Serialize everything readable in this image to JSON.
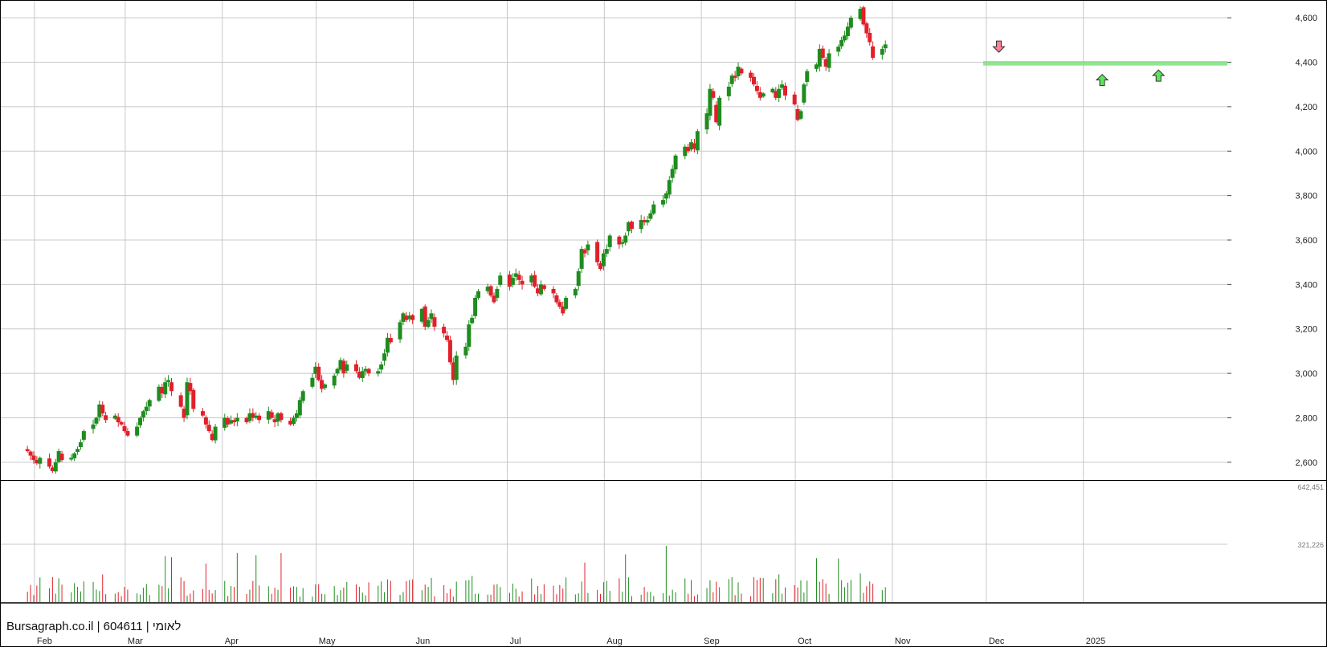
{
  "watermark": {
    "site": "Bursagraph.co.il",
    "separator": " | ",
    "code": "604611",
    "name": "לאומי"
  },
  "colors": {
    "up": "#1e8c1e",
    "down": "#e0202a",
    "grid": "#c8c8c8",
    "support_zone": "#7fe27f",
    "arrow_up_fill": "#5fe35f",
    "arrow_down_fill": "#ff7f9a",
    "frame": "#000000"
  },
  "chart_data": {
    "type": "candlestick",
    "price_ylim": [
      2520,
      4680
    ],
    "price_ticks": [
      2600,
      2800,
      3000,
      3200,
      3400,
      3600,
      3800,
      4000,
      4200,
      4400,
      4600
    ],
    "price_tick_labels": [
      "2,600",
      "2,800",
      "3,000",
      "3,200",
      "3,400",
      "3,600",
      "3,800",
      "4,000",
      "4,200",
      "4,400",
      "4,600"
    ],
    "x_ticks": [
      {
        "label": "Feb",
        "date": "2024-02-01"
      },
      {
        "label": "Mar",
        "date": "2024-03-01"
      },
      {
        "label": "Apr",
        "date": "2024-04-01"
      },
      {
        "label": "May",
        "date": "2024-05-01"
      },
      {
        "label": "Jun",
        "date": "2024-06-01"
      },
      {
        "label": "Jul",
        "date": "2024-07-01"
      },
      {
        "label": "Aug",
        "date": "2024-08-01"
      },
      {
        "label": "Sep",
        "date": "2024-09-01"
      },
      {
        "label": "Oct",
        "date": "2024-10-01"
      },
      {
        "label": "Nov",
        "date": "2024-11-01"
      },
      {
        "label": "Dec",
        "date": "2024-12-01"
      },
      {
        "label": "2025",
        "date": "2025-01-01"
      }
    ],
    "x_range": [
      "2024-01-21",
      "2025-02-16"
    ],
    "closes": [
      2650,
      2630,
      2610,
      2595,
      2620,
      2580,
      2560,
      2600,
      2650,
      2610,
      2620,
      2640,
      2660,
      2690,
      2740,
      2770,
      2800,
      2860,
      2820,
      2790,
      2810,
      2780,
      2770,
      2740,
      2720,
      2760,
      2800,
      2830,
      2850,
      2880,
      2940,
      2910,
      2960,
      2970,
      2920,
      2850,
      2800,
      2960,
      2920,
      2840,
      2810,
      2770,
      2740,
      2700,
      2760,
      2800,
      2770,
      2790,
      2780,
      2800,
      2780,
      2820,
      2800,
      2810,
      2790,
      2830,
      2800,
      2780,
      2820,
      2790,
      2770,
      2800,
      2820,
      2880,
      2920,
      2980,
      3030,
      2970,
      2930,
      2950,
      2990,
      3020,
      3060,
      3000,
      3040,
      3010,
      2980,
      3010,
      3020,
      3000,
      3010,
      3040,
      3090,
      3160,
      3140,
      3230,
      3270,
      3240,
      3260,
      3240,
      3290,
      3210,
      3240,
      3270,
      3210,
      3180,
      3150,
      3050,
      2970,
      3080,
      3120,
      3220,
      3250,
      3340,
      3370,
      3390,
      3350,
      3320,
      3380,
      3440,
      3390,
      3430,
      3450,
      3420,
      3400,
      3440,
      3390,
      3360,
      3400,
      3380,
      3360,
      3320,
      3300,
      3270,
      3340,
      3380,
      3460,
      3560,
      3540,
      3580,
      3500,
      3470,
      3540,
      3560,
      3620,
      3580,
      3590,
      3620,
      3680,
      3650,
      3690,
      3680,
      3690,
      3720,
      3760,
      3780,
      3810,
      3870,
      3920,
      3980,
      4020,
      4000,
      4040,
      4010,
      4090,
      4170,
      4280,
      4240,
      4130,
      4240,
      4290,
      4340,
      4330,
      4380,
      4350,
      4330,
      4300,
      4270,
      4240,
      4260,
      4280,
      4240,
      4280,
      4300,
      4250,
      4210,
      4140,
      4180,
      4300,
      4360,
      4390,
      4460,
      4420,
      4380,
      4440,
      4470,
      4500,
      4520,
      4560,
      4600,
      4640,
      4570,
      4530,
      4490,
      4420,
      4460,
      4480
    ],
    "volume_ylim": [
      0,
      660000
    ],
    "volume_ticks": [
      321226,
      642451
    ],
    "volume_tick_labels": [
      "321,226",
      "642,451"
    ],
    "support_zone": {
      "from": "2024-11-30",
      "to": "2025-02-16",
      "low": 4385,
      "high": 4405
    },
    "arrows": [
      {
        "direction": "down",
        "date": "2024-12-05",
        "price": 4470
      },
      {
        "direction": "up",
        "date": "2025-01-07",
        "price": 4320
      },
      {
        "direction": "up",
        "date": "2025-01-25",
        "price": 4340
      }
    ]
  }
}
